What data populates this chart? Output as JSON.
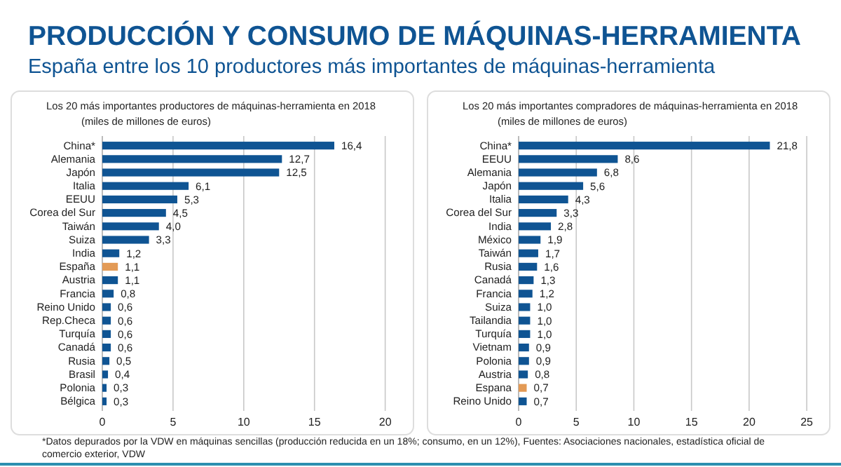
{
  "chart_data": [
    {
      "type": "other",
      "title": "PRODUCCIÓN Y CONSUMO DE MÁQUINAS-HERRAMIENTA",
      "subtitle": "España entre los 10 productores más importantes de máquinas-herramienta",
      "annotations": [
        "*Datos depurados por la VDW en máquinas sencillas (producción reducida en un 18%; consumo, en un 12%), Fuentes: Asociaciones nacionales, estadística oficial de comercio exterior, VDW"
      ]
    },
    {
      "type": "bar",
      "orientation": "horizontal",
      "title": "Los 20 más importantes productores de máquinas-herramienta en 2018",
      "subtitle": "(miles de millones de euros)",
      "categories": [
        "China*",
        "Alemania",
        "Japón",
        "Italia",
        "EEUU",
        "Corea del Sur",
        "Taiwán",
        "Suiza",
        "India",
        "España",
        "Austria",
        "Francia",
        "Reino Unido",
        "Rep.Checa",
        "Turquía",
        "Canadá",
        "Rusia",
        "Brasil",
        "Polonia",
        "Bélgica"
      ],
      "values": [
        16.4,
        12.7,
        12.5,
        6.1,
        5.3,
        4.5,
        4.0,
        3.3,
        1.2,
        1.1,
        1.1,
        0.8,
        0.6,
        0.6,
        0.6,
        0.6,
        0.5,
        0.4,
        0.3,
        0.3
      ],
      "value_labels": [
        "16,4",
        "12,7",
        "12,5",
        "6,1",
        "5,3",
        "4,5",
        "4,0",
        "3,3",
        "1,2",
        "1,1",
        "1,1",
        "0,8",
        "0,6",
        "0,6",
        "0,6",
        "0,6",
        "0,5",
        "0,4",
        "0,3",
        "0,3"
      ],
      "colors": [
        "#0f5493",
        "#0f5493",
        "#0f5493",
        "#0f5493",
        "#0f5493",
        "#0f5493",
        "#0f5493",
        "#0f5493",
        "#0f5493",
        "#e39a55",
        "#0f5493",
        "#0f5493",
        "#0f5493",
        "#0f5493",
        "#0f5493",
        "#0f5493",
        "#0f5493",
        "#0f5493",
        "#0f5493",
        "#0f5493"
      ],
      "xlim": [
        0,
        22
      ],
      "xticks": [
        0,
        5,
        10,
        15,
        20
      ],
      "grid": "x"
    },
    {
      "type": "bar",
      "orientation": "horizontal",
      "title": "Los 20 más importantes compradores de máquinas-herramienta en 2018",
      "subtitle": "(miles de millones de euros)",
      "categories": [
        "China*",
        "EEUU",
        "Alemania",
        "Japón",
        "Italia",
        "Corea del Sur",
        "India",
        "México",
        "Taiwán",
        "Rusia",
        "Canadá",
        "Francia",
        "Suiza",
        "Tailandia",
        "Turquía",
        "Vietnam",
        "Polonia",
        "Austria",
        "Espana",
        "Reino Unido"
      ],
      "values": [
        21.8,
        8.6,
        6.8,
        5.6,
        4.3,
        3.3,
        2.8,
        1.9,
        1.7,
        1.6,
        1.3,
        1.2,
        1.0,
        1.0,
        1.0,
        0.9,
        0.9,
        0.8,
        0.7,
        0.7
      ],
      "value_labels": [
        "21,8",
        "8,6",
        "6,8",
        "5,6",
        "4,3",
        "3,3",
        "2,8",
        "1,9",
        "1,7",
        "1,6",
        "1,3",
        "1,2",
        "1,0",
        "1,0",
        "1,0",
        "0,9",
        "0,9",
        "0,8",
        "0,7",
        "0,7"
      ],
      "colors": [
        "#0f5493",
        "#0f5493",
        "#0f5493",
        "#0f5493",
        "#0f5493",
        "#0f5493",
        "#0f5493",
        "#0f5493",
        "#0f5493",
        "#0f5493",
        "#0f5493",
        "#0f5493",
        "#0f5493",
        "#0f5493",
        "#0f5493",
        "#0f5493",
        "#0f5493",
        "#0f5493",
        "#e39a55",
        "#0f5493"
      ],
      "xlim": [
        0,
        27
      ],
      "xticks": [
        0,
        5,
        10,
        15,
        20,
        25
      ],
      "grid": "x"
    }
  ]
}
